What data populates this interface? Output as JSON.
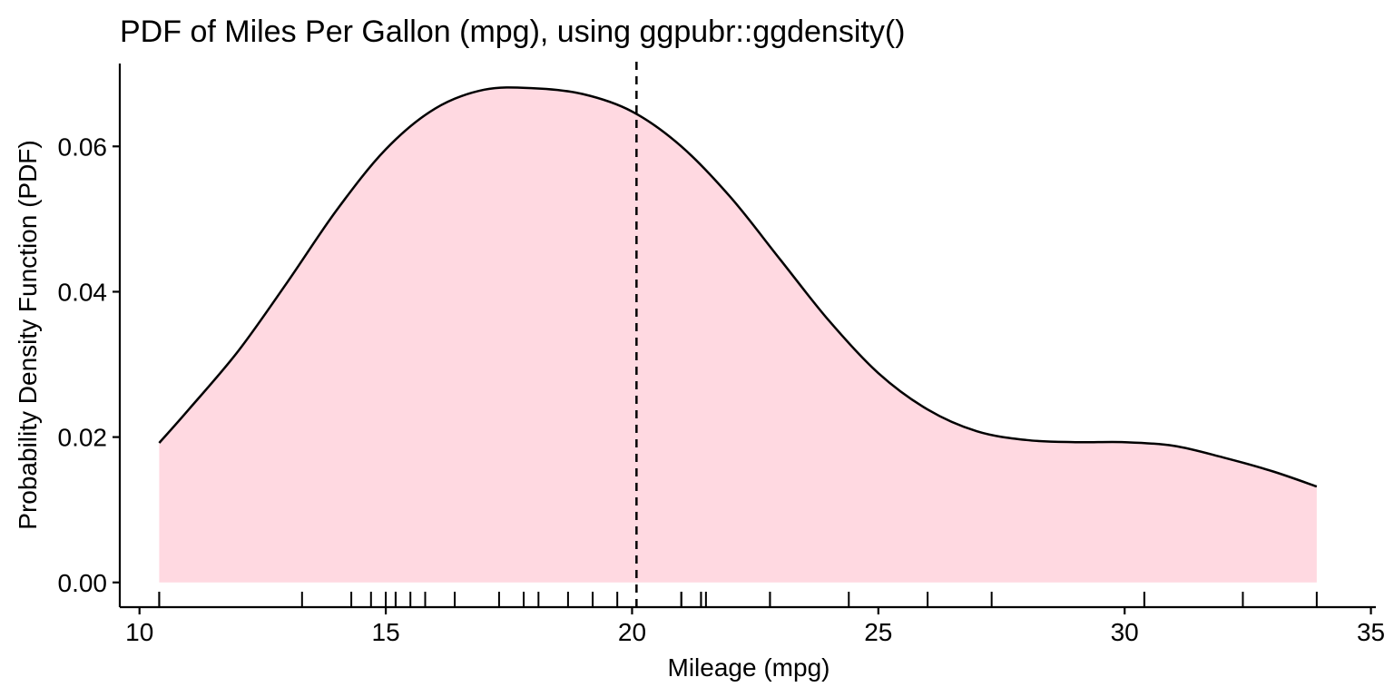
{
  "chart_data": {
    "type": "area",
    "title": "PDF of Miles Per Gallon (mpg), using ggpubr::ggdensity()",
    "xlabel": "Mileage (mpg)",
    "ylabel": "Probability Density Function (PDF)",
    "xlim": [
      9.6,
      35.1
    ],
    "ylim": [
      -0.0034,
      0.0714
    ],
    "x_ticks": [
      10,
      15,
      20,
      25,
      30,
      35
    ],
    "x_tick_labels": [
      "10",
      "15",
      "20",
      "25",
      "30",
      "35"
    ],
    "y_ticks": [
      0.0,
      0.02,
      0.04,
      0.06
    ],
    "y_tick_labels": [
      "0.00",
      "0.02",
      "0.04",
      "0.06"
    ],
    "fill_color": "#FFD9E1",
    "line_color": "#000000",
    "series": [
      {
        "x": [
          10.4,
          11.0,
          12.0,
          13.0,
          14.0,
          15.0,
          16.0,
          17.0,
          18.0,
          19.0,
          20.0,
          21.0,
          22.0,
          23.0,
          24.0,
          25.0,
          26.0,
          27.0,
          28.0,
          29.0,
          30.0,
          31.0,
          32.0,
          33.0,
          33.9
        ],
        "y": [
          0.0192,
          0.0238,
          0.0318,
          0.0413,
          0.0512,
          0.0596,
          0.0652,
          0.0678,
          0.068,
          0.0672,
          0.0648,
          0.06,
          0.053,
          0.0445,
          0.036,
          0.0288,
          0.0238,
          0.0208,
          0.0196,
          0.0193,
          0.0193,
          0.0188,
          0.0172,
          0.0153,
          0.0132
        ]
      }
    ],
    "mean_line_x": 20.09,
    "rug": [
      10.4,
      10.4,
      13.3,
      14.3,
      14.7,
      15.0,
      15.2,
      15.2,
      15.5,
      15.8,
      16.4,
      17.3,
      17.8,
      18.1,
      18.7,
      19.2,
      19.2,
      19.7,
      21.0,
      21.0,
      21.4,
      21.4,
      21.5,
      22.8,
      22.8,
      24.4,
      26.0,
      27.3,
      30.4,
      30.4,
      32.4,
      33.9
    ],
    "grid": false,
    "legend": "none"
  }
}
